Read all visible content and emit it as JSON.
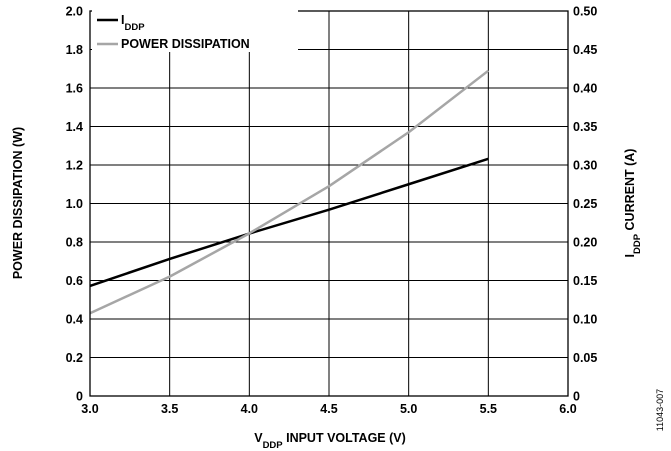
{
  "chart_data": {
    "type": "line",
    "x_label": {
      "main": "V",
      "sub": "DDP",
      "rest": " INPUT VOLTAGE (V)"
    },
    "y_left_label": "POWER DISSIPATION (W)",
    "y_right_label": {
      "main": "I",
      "sub": "DDP",
      "rest": " CURRENT (A)"
    },
    "x_ticks": [
      "3.0",
      "3.5",
      "4.0",
      "4.5",
      "5.0",
      "5.5",
      "6.0"
    ],
    "y_left_ticks": [
      "0",
      "0.2",
      "0.4",
      "0.6",
      "0.8",
      "1.0",
      "1.2",
      "1.4",
      "1.6",
      "1.8",
      "2.0"
    ],
    "y_right_ticks": [
      "0",
      "0.05",
      "0.10",
      "0.15",
      "0.20",
      "0.25",
      "0.30",
      "0.35",
      "0.40",
      "0.45",
      "0.50"
    ],
    "xlim": [
      3.0,
      6.0
    ],
    "ylim_left": [
      0,
      2.0
    ],
    "ylim_right": [
      0,
      0.5
    ],
    "grid": true,
    "legend_position": "top-left",
    "series": [
      {
        "name": {
          "main": "I",
          "sub": "DDP"
        },
        "axis": "right",
        "color": "#000000",
        "x": [
          3.0,
          3.5,
          4.0,
          4.5,
          5.0,
          5.5
        ],
        "y": [
          0.143,
          0.178,
          0.211,
          0.242,
          0.275,
          0.308
        ]
      },
      {
        "name": {
          "main": "POWER DISSIPATION",
          "sub": ""
        },
        "axis": "left",
        "color": "#a6a6a6",
        "x": [
          3.0,
          3.5,
          4.0,
          4.5,
          5.0,
          5.5
        ],
        "y": [
          0.43,
          0.62,
          0.845,
          1.09,
          1.37,
          1.69
        ]
      }
    ]
  },
  "figure_id": "11043-007"
}
